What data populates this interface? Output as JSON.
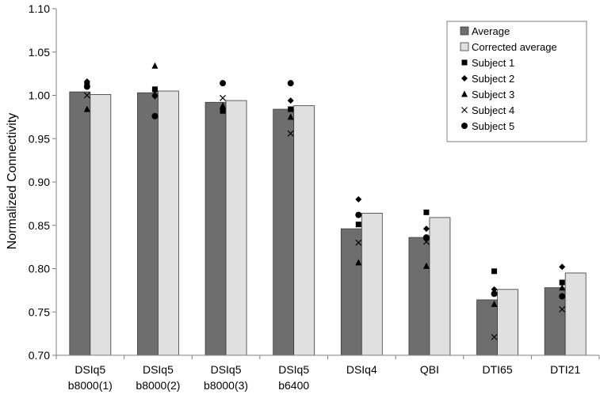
{
  "chart_data": {
    "type": "bar",
    "title": "",
    "xlabel": "",
    "ylabel": "Normalized Connectivity",
    "ylim": [
      0.7,
      1.1
    ],
    "yticks": [
      "0.70",
      "0.75",
      "0.80",
      "0.85",
      "0.90",
      "0.95",
      "1.00",
      "1.05",
      "1.10"
    ],
    "grid": false,
    "legend_position": "top-right",
    "categories": [
      [
        "DSIq5",
        "b8000(1)"
      ],
      [
        "DSIq5",
        "b8000(2)"
      ],
      [
        "DSIq5",
        "b8000(3)"
      ],
      [
        "DSIq5",
        "b6400"
      ],
      [
        "DSIq4"
      ],
      [
        "QBI"
      ],
      [
        "DTI65"
      ],
      [
        "DTI21"
      ]
    ],
    "bar_series": [
      {
        "name": "Average",
        "color": "#6e6e6e",
        "values": [
          1.004,
          1.003,
          0.992,
          0.984,
          0.846,
          0.836,
          0.764,
          0.778
        ]
      },
      {
        "name": "Corrected average",
        "color": "#e0e0e0",
        "values": [
          1.001,
          1.005,
          0.994,
          0.988,
          0.864,
          0.859,
          0.776,
          0.795
        ]
      }
    ],
    "subject_series": [
      {
        "name": "Subject 1",
        "marker": "square",
        "values": [
          1.012,
          1.007,
          0.982,
          0.984,
          0.851,
          0.865,
          0.797,
          0.784
        ]
      },
      {
        "name": "Subject 2",
        "marker": "diamond",
        "values": [
          1.016,
          0.999,
          0.985,
          0.994,
          0.88,
          0.846,
          0.776,
          0.802
        ]
      },
      {
        "name": "Subject 3",
        "marker": "triangle",
        "values": [
          0.984,
          1.034,
          0.988,
          0.975,
          0.807,
          0.803,
          0.759,
          0.778
        ]
      },
      {
        "name": "Subject 4",
        "marker": "x",
        "values": [
          1.0,
          1.003,
          0.997,
          0.956,
          0.83,
          0.831,
          0.721,
          0.753
        ]
      },
      {
        "name": "Subject 5",
        "marker": "circle",
        "values": [
          1.01,
          0.976,
          1.014,
          1.014,
          0.862,
          0.836,
          0.771,
          0.768
        ]
      }
    ]
  }
}
